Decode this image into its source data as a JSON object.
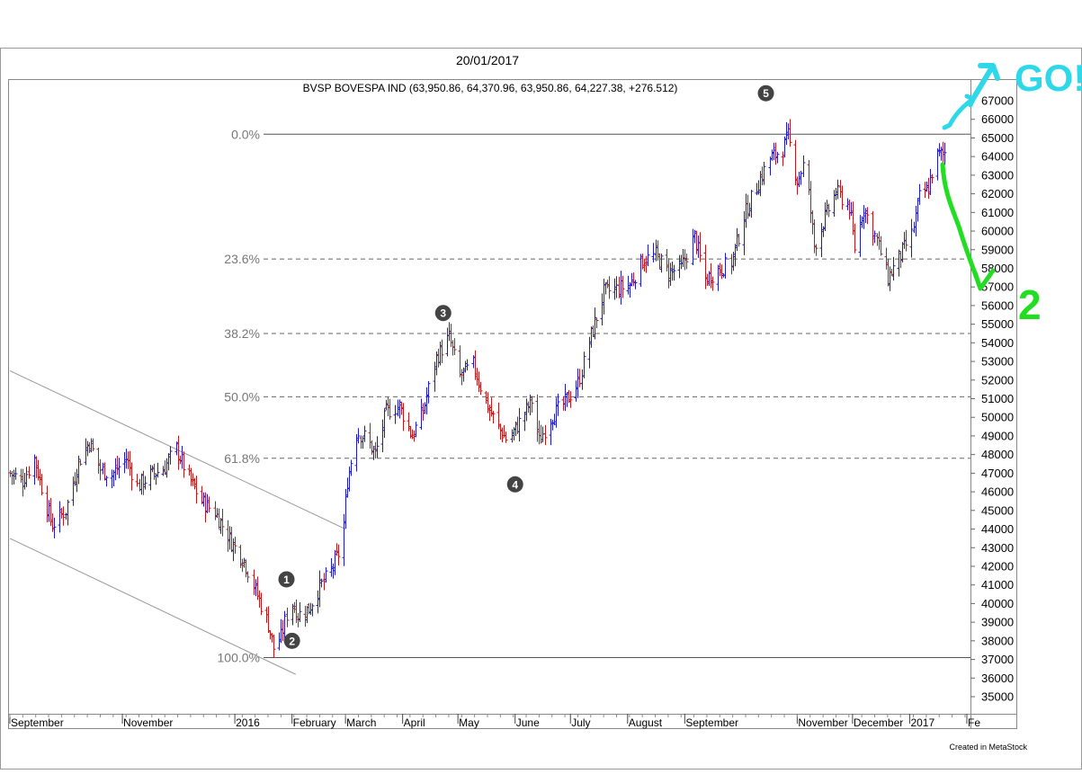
{
  "header": {
    "date": "20/01/2017",
    "quote": "BVSP BOVESPA IND (63,950.86, 64,370.96, 63,950.86, 64,227.38, +276.512)"
  },
  "footer": {
    "credit": "Created in MetaStock"
  },
  "colors": {
    "up": "#1a1ad6",
    "down": "#c01818",
    "fib": "#555555",
    "annotation_cyan": "#2fd8e8",
    "annotation_green": "#22dd22"
  },
  "annotations": {
    "label_1": "1",
    "label_go": "GO!",
    "label_2": "2"
  },
  "chart_data": {
    "type": "ohlc",
    "title": "BVSP BOVESPA IND",
    "ylim": [
      34000,
      68000
    ],
    "y_ticks": [
      35000,
      36000,
      37000,
      38000,
      39000,
      40000,
      41000,
      42000,
      43000,
      44000,
      45000,
      46000,
      47000,
      48000,
      49000,
      50000,
      51000,
      52000,
      53000,
      54000,
      55000,
      56000,
      57000,
      58000,
      59000,
      60000,
      61000,
      62000,
      63000,
      64000,
      65000,
      66000,
      67000
    ],
    "y_tick_labels": [
      "35000",
      "36000",
      "37000",
      "38000",
      "39000",
      "40000",
      "41000",
      "42000",
      "43000",
      "44000",
      "45000",
      "46000",
      "47000",
      "48000",
      "49000",
      "50000",
      "51000",
      "52000",
      "53000",
      "54000",
      "55000",
      "56000",
      "57000",
      "58000",
      "59000",
      "60000",
      "61000",
      "62000",
      "63000",
      "64000",
      "65000",
      "66000",
      "67000"
    ],
    "x_months": [
      {
        "label": "September",
        "date": "2015-09-01"
      },
      {
        "label": "November",
        "date": "2015-11-01"
      },
      {
        "label": "2016",
        "date": "2016-01-01"
      },
      {
        "label": "February",
        "date": "2016-02-01"
      },
      {
        "label": "March",
        "date": "2016-03-01"
      },
      {
        "label": "April",
        "date": "2016-04-01"
      },
      {
        "label": "May",
        "date": "2016-05-01"
      },
      {
        "label": "June",
        "date": "2016-06-01"
      },
      {
        "label": "July",
        "date": "2016-07-01"
      },
      {
        "label": "August",
        "date": "2016-08-01"
      },
      {
        "label": "September",
        "date": "2016-09-01"
      },
      {
        "label": "November",
        "date": "2016-11-01"
      },
      {
        "label": "December",
        "date": "2016-12-01"
      },
      {
        "label": "2017",
        "date": "2017-01-01"
      },
      {
        "label": "Fe",
        "date": "2017-02-01"
      }
    ],
    "x_start": "2015-09-01",
    "x_end": "2017-02-01",
    "fibonacci": [
      {
        "label": "0.0%",
        "value": 65200,
        "style": "solid"
      },
      {
        "label": "23.6%",
        "value": 58500,
        "style": "dashed"
      },
      {
        "label": "38.2%",
        "value": 54500,
        "style": "dashed"
      },
      {
        "label": "50.0%",
        "value": 51100,
        "style": "dashed"
      },
      {
        "label": "61.8%",
        "value": 47800,
        "style": "dashed"
      },
      {
        "label": "100.0%",
        "value": 37100,
        "style": "solid"
      }
    ],
    "channel": [
      {
        "from": {
          "date": "2015-09-01",
          "value": 52500
        },
        "to": {
          "date": "2016-03-01",
          "value": 44000
        }
      },
      {
        "from": {
          "date": "2015-09-01",
          "value": 43500
        },
        "to": {
          "date": "2016-02-03",
          "value": 36200
        }
      }
    ],
    "wave_labels": [
      {
        "label": "1",
        "date": "2016-01-29",
        "value": 41300
      },
      {
        "label": "2",
        "date": "2016-02-01",
        "value": 38000
      },
      {
        "label": "3",
        "date": "2016-04-23",
        "value": 55600
      },
      {
        "label": "4",
        "date": "2016-06-01",
        "value": 46400
      },
      {
        "label": "5",
        "date": "2016-10-15",
        "value": 67400
      }
    ],
    "price_path": [
      {
        "date": "2015-09-01",
        "value": 47000
      },
      {
        "date": "2015-09-08",
        "value": 46600
      },
      {
        "date": "2015-09-14",
        "value": 47800
      },
      {
        "date": "2015-09-20",
        "value": 45500
      },
      {
        "date": "2015-09-24",
        "value": 44200
      },
      {
        "date": "2015-10-01",
        "value": 45000
      },
      {
        "date": "2015-10-08",
        "value": 47600
      },
      {
        "date": "2015-10-14",
        "value": 48700
      },
      {
        "date": "2015-10-20",
        "value": 47200
      },
      {
        "date": "2015-10-26",
        "value": 46900
      },
      {
        "date": "2015-11-03",
        "value": 47800
      },
      {
        "date": "2015-11-09",
        "value": 46300
      },
      {
        "date": "2015-11-16",
        "value": 46900
      },
      {
        "date": "2015-11-23",
        "value": 47200
      },
      {
        "date": "2015-11-30",
        "value": 48300
      },
      {
        "date": "2015-12-07",
        "value": 46700
      },
      {
        "date": "2015-12-14",
        "value": 45500
      },
      {
        "date": "2015-12-21",
        "value": 44900
      },
      {
        "date": "2015-12-30",
        "value": 43300
      },
      {
        "date": "2016-01-06",
        "value": 42300
      },
      {
        "date": "2016-01-12",
        "value": 40700
      },
      {
        "date": "2016-01-19",
        "value": 38900
      },
      {
        "date": "2016-01-22",
        "value": 37600
      },
      {
        "date": "2016-01-26",
        "value": 38200
      },
      {
        "date": "2016-01-31",
        "value": 40200
      },
      {
        "date": "2016-02-04",
        "value": 39400
      },
      {
        "date": "2016-02-10",
        "value": 39700
      },
      {
        "date": "2016-02-15",
        "value": 40700
      },
      {
        "date": "2016-02-22",
        "value": 41800
      },
      {
        "date": "2016-02-28",
        "value": 43100
      },
      {
        "date": "2016-03-02",
        "value": 46600
      },
      {
        "date": "2016-03-07",
        "value": 49200
      },
      {
        "date": "2016-03-12",
        "value": 48900
      },
      {
        "date": "2016-03-17",
        "value": 48000
      },
      {
        "date": "2016-03-23",
        "value": 50300
      },
      {
        "date": "2016-03-30",
        "value": 50600
      },
      {
        "date": "2016-04-06",
        "value": 49000
      },
      {
        "date": "2016-04-12",
        "value": 50300
      },
      {
        "date": "2016-04-19",
        "value": 53200
      },
      {
        "date": "2016-04-26",
        "value": 54300
      },
      {
        "date": "2016-05-02",
        "value": 52200
      },
      {
        "date": "2016-05-09",
        "value": 52800
      },
      {
        "date": "2016-05-16",
        "value": 50800
      },
      {
        "date": "2016-05-22",
        "value": 49600
      },
      {
        "date": "2016-05-28",
        "value": 48700
      },
      {
        "date": "2016-06-04",
        "value": 49900
      },
      {
        "date": "2016-06-10",
        "value": 50900
      },
      {
        "date": "2016-06-14",
        "value": 48700
      },
      {
        "date": "2016-06-20",
        "value": 50000
      },
      {
        "date": "2016-06-28",
        "value": 50800
      },
      {
        "date": "2016-07-05",
        "value": 51800
      },
      {
        "date": "2016-07-12",
        "value": 54400
      },
      {
        "date": "2016-07-19",
        "value": 56700
      },
      {
        "date": "2016-07-26",
        "value": 56900
      },
      {
        "date": "2016-08-02",
        "value": 57100
      },
      {
        "date": "2016-08-09",
        "value": 58400
      },
      {
        "date": "2016-08-16",
        "value": 58700
      },
      {
        "date": "2016-08-23",
        "value": 57800
      },
      {
        "date": "2016-08-30",
        "value": 58000
      },
      {
        "date": "2016-09-06",
        "value": 59700
      },
      {
        "date": "2016-09-12",
        "value": 57400
      },
      {
        "date": "2016-09-19",
        "value": 57900
      },
      {
        "date": "2016-09-26",
        "value": 58300
      },
      {
        "date": "2016-10-03",
        "value": 60800
      },
      {
        "date": "2016-10-10",
        "value": 62400
      },
      {
        "date": "2016-10-17",
        "value": 63900
      },
      {
        "date": "2016-10-24",
        "value": 64400
      },
      {
        "date": "2016-10-27",
        "value": 65100
      },
      {
        "date": "2016-11-01",
        "value": 62700
      },
      {
        "date": "2016-11-05",
        "value": 63800
      },
      {
        "date": "2016-11-10",
        "value": 59200
      },
      {
        "date": "2016-11-16",
        "value": 60700
      },
      {
        "date": "2016-11-22",
        "value": 62100
      },
      {
        "date": "2016-11-29",
        "value": 61300
      },
      {
        "date": "2016-12-02",
        "value": 59100
      },
      {
        "date": "2016-12-07",
        "value": 61300
      },
      {
        "date": "2016-12-14",
        "value": 59500
      },
      {
        "date": "2016-12-20",
        "value": 57500
      },
      {
        "date": "2016-12-27",
        "value": 58700
      },
      {
        "date": "2017-01-02",
        "value": 59800
      },
      {
        "date": "2017-01-06",
        "value": 61800
      },
      {
        "date": "2017-01-11",
        "value": 62300
      },
      {
        "date": "2017-01-15",
        "value": 64000
      },
      {
        "date": "2017-01-20",
        "value": 64227
      }
    ]
  }
}
